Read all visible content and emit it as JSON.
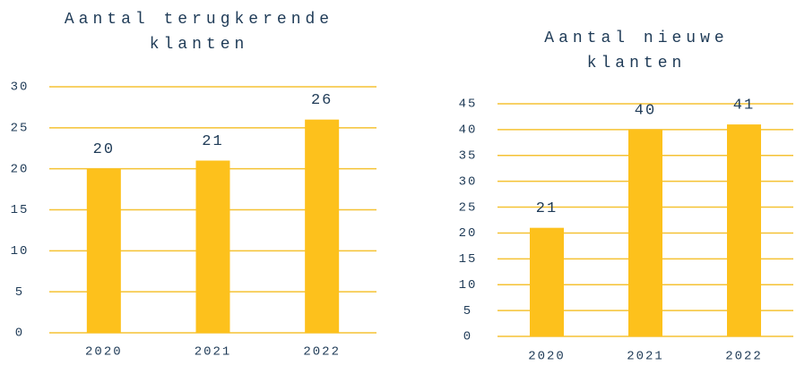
{
  "chart_data": [
    {
      "type": "bar",
      "title": "Aantal terugkerende klanten",
      "categories": [
        "2020",
        "2021",
        "2022"
      ],
      "values": [
        20,
        21,
        26
      ],
      "color": "#fdc11c",
      "ylim": [
        0,
        30
      ],
      "yticks": [
        0,
        5,
        10,
        15,
        20,
        25,
        30
      ],
      "grid": true,
      "grid_color": "#f5c233"
    },
    {
      "type": "bar",
      "title": "Aantal nieuwe klanten",
      "categories": [
        "2020",
        "2021",
        "2022"
      ],
      "values": [
        21,
        40,
        41
      ],
      "color": "#fdc11c",
      "ylim": [
        0,
        45
      ],
      "yticks": [
        0,
        5,
        10,
        15,
        20,
        25,
        30,
        35,
        40,
        45
      ],
      "grid": true,
      "grid_color": "#f5c233"
    }
  ]
}
